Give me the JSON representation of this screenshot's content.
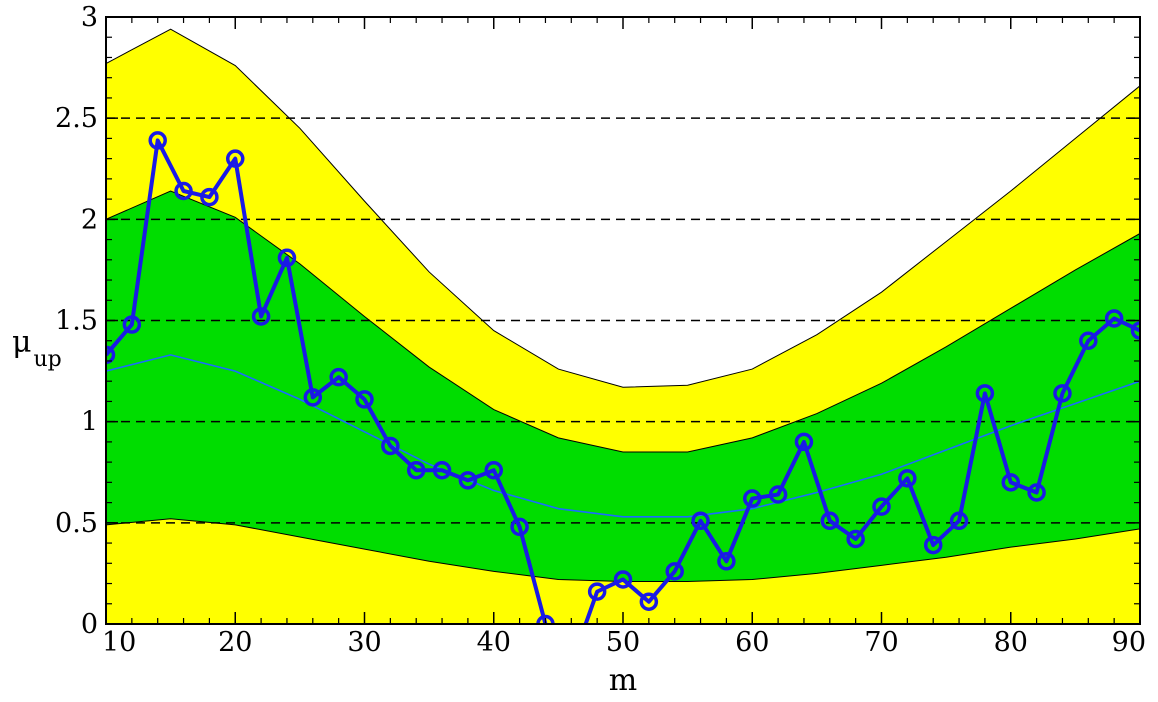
{
  "chart_data": {
    "type": "line",
    "title": "",
    "xlabel": "m",
    "ylabel": {
      "main": "μ",
      "sub": "up"
    },
    "xlim": [
      10,
      90
    ],
    "ylim": [
      0,
      3
    ],
    "x_ticks": [
      10,
      20,
      30,
      40,
      50,
      60,
      70,
      80,
      90
    ],
    "x_tick_labels": [
      "10",
      "20",
      "30",
      "40",
      "50",
      "60",
      "70",
      "80",
      "90"
    ],
    "y_ticks": [
      0,
      0.5,
      1,
      1.5,
      2,
      2.5,
      3
    ],
    "y_tick_labels": [
      "0",
      "0.5",
      "1",
      "1.5",
      "2",
      "2.5",
      "3"
    ],
    "grid": {
      "horizontal_dashed_at": [
        0.5,
        1,
        1.5,
        2,
        2.5
      ]
    },
    "colors": {
      "band_2sigma": "#ffff00",
      "band_1sigma": "#00dd00",
      "observed": "#1a1ae6",
      "expected": "#1a6cff",
      "grid": "#000000"
    },
    "bands": {
      "x": [
        10,
        15,
        20,
        25,
        30,
        35,
        40,
        45,
        50,
        55,
        60,
        65,
        70,
        75,
        80,
        85,
        90
      ],
      "plus2": [
        2.77,
        2.94,
        2.76,
        2.45,
        2.09,
        1.74,
        1.45,
        1.26,
        1.17,
        1.18,
        1.26,
        1.43,
        1.64,
        1.89,
        2.14,
        2.4,
        2.66
      ],
      "plus1": [
        2.0,
        2.14,
        2.01,
        1.78,
        1.52,
        1.27,
        1.06,
        0.92,
        0.85,
        0.85,
        0.92,
        1.04,
        1.19,
        1.37,
        1.56,
        1.75,
        1.93
      ],
      "median": [
        1.25,
        1.33,
        1.25,
        1.11,
        0.95,
        0.79,
        0.66,
        0.57,
        0.53,
        0.53,
        0.57,
        0.65,
        0.74,
        0.86,
        0.98,
        1.09,
        1.2
      ],
      "minus1": [
        0.49,
        0.52,
        0.49,
        0.43,
        0.37,
        0.31,
        0.26,
        0.22,
        0.21,
        0.21,
        0.22,
        0.25,
        0.29,
        0.33,
        0.38,
        0.42,
        0.47
      ],
      "minus2": [
        0,
        0,
        0,
        0,
        0,
        0,
        0,
        0,
        0,
        0,
        0,
        0,
        0,
        0,
        0,
        0,
        0
      ]
    },
    "series": [
      {
        "x": [
          10,
          12,
          14,
          16,
          18,
          20,
          22,
          24,
          26,
          28,
          30,
          32,
          34,
          36,
          38,
          40,
          42,
          44,
          46,
          48,
          50,
          52,
          54,
          56,
          58,
          60,
          62,
          64,
          66,
          68,
          70,
          72,
          74,
          76,
          78,
          80,
          82,
          84,
          86,
          88,
          90
        ],
        "values": [
          1.33,
          1.48,
          2.39,
          2.14,
          2.11,
          2.3,
          1.52,
          1.81,
          1.12,
          1.22,
          1.11,
          0.88,
          0.76,
          0.76,
          0.71,
          0.76,
          0.48,
          0.0,
          -0.2,
          0.16,
          0.22,
          0.11,
          0.26,
          0.51,
          0.31,
          0.62,
          0.64,
          0.9,
          0.51,
          0.42,
          0.58,
          0.72,
          0.39,
          0.51,
          1.14,
          0.7,
          0.65,
          1.14,
          1.4,
          1.51,
          1.45
        ],
        "markers_hidden_at": [
          46
        ]
      }
    ]
  }
}
